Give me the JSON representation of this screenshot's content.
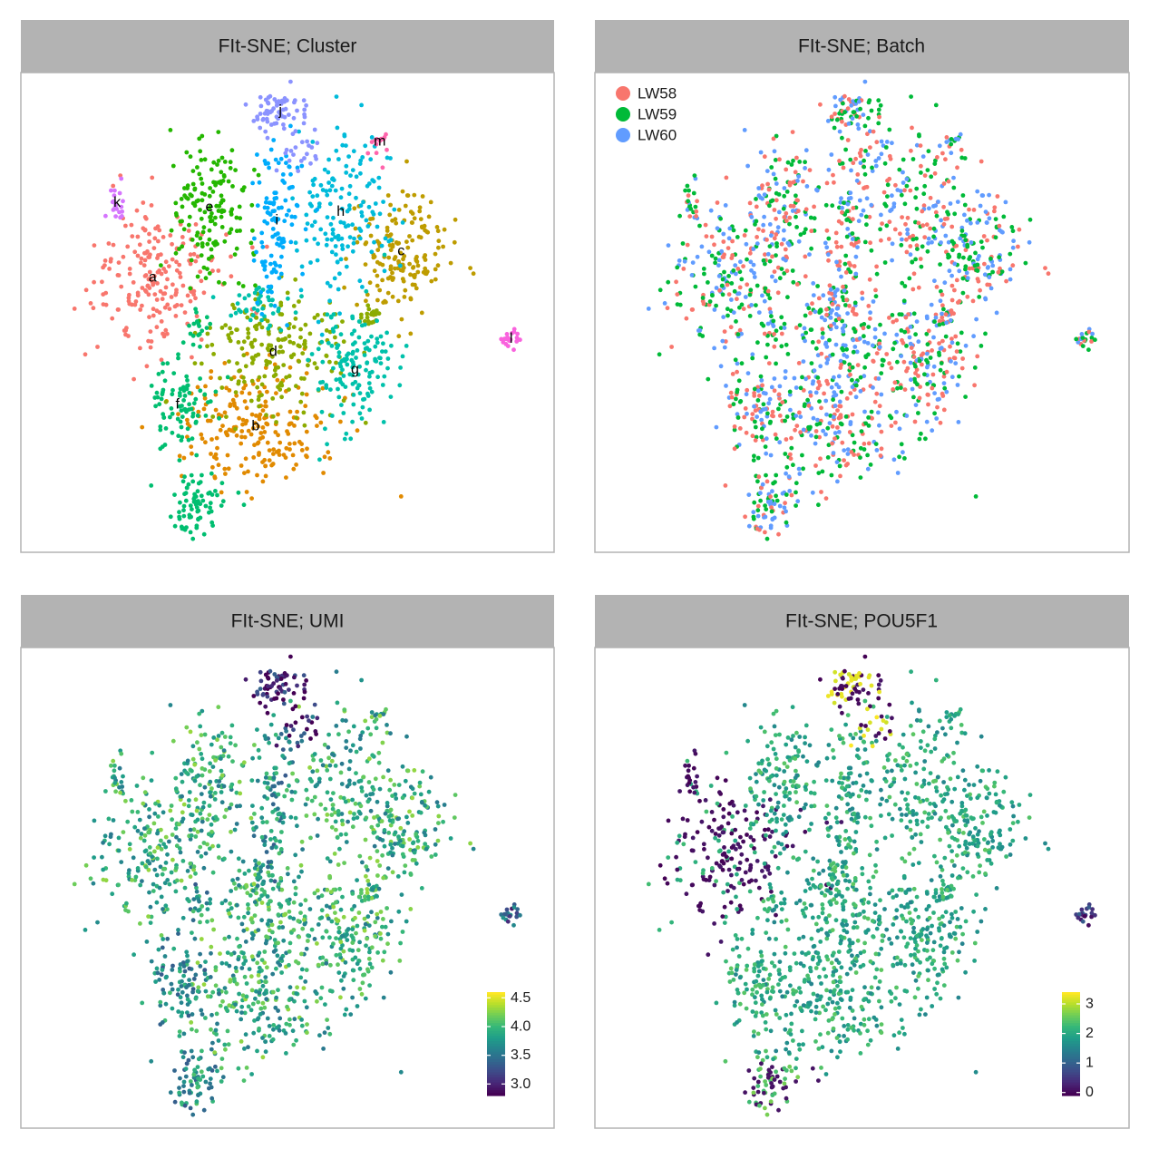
{
  "chart_data": [
    {
      "type": "scatter",
      "title": "FIt-SNE; Cluster",
      "color_by": "cluster",
      "clusters": [
        {
          "label": "a",
          "color": "#F8766D",
          "centers": [
            [
              -38,
              9,
              150,
              10,
              9
            ]
          ]
        },
        {
          "label": "b",
          "color": "#E18A00",
          "centers": [
            [
              -9,
              -25,
              150,
              11,
              7
            ]
          ]
        },
        {
          "label": "c",
          "color": "#BE9C00",
          "centers": [
            [
              32,
              15,
              120,
              7,
              7
            ]
          ]
        },
        {
          "label": "d",
          "color": "#8CAB00",
          "centers": [
            [
              -4,
              -8,
              140,
              10,
              7
            ],
            [
              23,
              0,
              15,
              2,
              1
            ]
          ]
        },
        {
          "label": "e",
          "color": "#24B700",
          "centers": [
            [
              -22,
              25,
              110,
              6,
              8
            ]
          ]
        },
        {
          "label": "f",
          "color": "#00BE70",
          "centers": [
            [
              -31,
              -20,
              60,
              5,
              5
            ],
            [
              -26,
              -43,
              55,
              5,
              3.5
            ],
            [
              -25,
              -3,
              12,
              2,
              2
            ]
          ]
        },
        {
          "label": "g",
          "color": "#00C1AB",
          "centers": [
            [
              19,
              -12,
              100,
              6,
              7
            ],
            [
              -7,
              3,
              30,
              5,
              3
            ]
          ]
        },
        {
          "label": "h",
          "color": "#00BBDA",
          "centers": [
            [
              15,
              24,
              110,
              6,
              9
            ]
          ]
        },
        {
          "label": "i",
          "color": "#00ACFC",
          "centers": [
            [
              -3,
              22,
              80,
              3.2,
              10
            ]
          ]
        },
        {
          "label": "j",
          "color": "#8B93FF",
          "centers": [
            [
              -2,
              47,
              45,
              5,
              2.5
            ],
            [
              4,
              38,
              15,
              3,
              2
            ]
          ]
        },
        {
          "label": "k",
          "color": "#D575FE",
          "centers": [
            [
              -48,
              26,
              15,
              1.2,
              2.5
            ]
          ]
        },
        {
          "label": "l",
          "color": "#F962DD",
          "centers": [
            [
              63,
              -5,
              14,
              1.4,
              1.6
            ]
          ]
        },
        {
          "label": "m",
          "color": "#FF65AC",
          "centers": [
            [
              26,
              40,
              10,
              1.2,
              2.3
            ]
          ]
        }
      ]
    },
    {
      "type": "scatter",
      "title": "FIt-SNE; Batch",
      "color_by": "batch",
      "legend": {
        "position": "top-left",
        "entries": [
          {
            "name": "LW58",
            "color": "#F8766D"
          },
          {
            "name": "LW59",
            "color": "#00BA38"
          },
          {
            "name": "LW60",
            "color": "#619CFF"
          }
        ]
      }
    },
    {
      "type": "scatter",
      "title": "FIt-SNE; UMI",
      "color_by": "continuous",
      "legend": {
        "position": "bottom-right",
        "range": [
          2.8,
          4.6
        ],
        "ticks": [
          "4.5",
          "4.0",
          "3.5",
          "3.0"
        ],
        "tick_values": [
          4.5,
          4.0,
          3.5,
          3.0
        ]
      }
    },
    {
      "type": "scatter",
      "title": "FIt-SNE; POU5F1",
      "color_by": "continuous",
      "legend": {
        "position": "bottom-right",
        "range": [
          -0.1,
          3.4
        ],
        "ticks": [
          "3",
          "2",
          "1",
          "0"
        ],
        "tick_values": [
          3,
          2,
          1,
          0
        ]
      }
    }
  ],
  "viridis": [
    "#440154",
    "#482878",
    "#3E4A89",
    "#31688E",
    "#26828E",
    "#1F9E89",
    "#35B779",
    "#6DCD59",
    "#B4DE2C",
    "#FDE725"
  ]
}
